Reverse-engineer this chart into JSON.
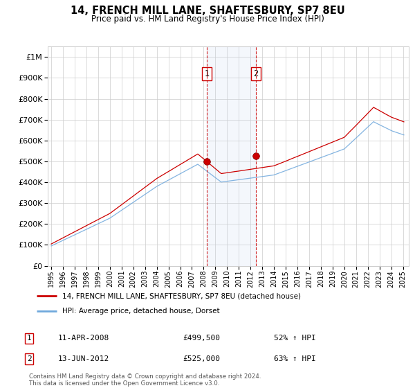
{
  "title": "14, FRENCH MILL LANE, SHAFTESBURY, SP7 8EU",
  "subtitle": "Price paid vs. HM Land Registry's House Price Index (HPI)",
  "legend_line1": "14, FRENCH MILL LANE, SHAFTESBURY, SP7 8EU (detached house)",
  "legend_line2": "HPI: Average price, detached house, Dorset",
  "transaction1_date": "11-APR-2008",
  "transaction1_price": "£499,500",
  "transaction1_hpi": "52% ↑ HPI",
  "transaction2_date": "13-JUN-2012",
  "transaction2_price": "£525,000",
  "transaction2_hpi": "63% ↑ HPI",
  "footer": "Contains HM Land Registry data © Crown copyright and database right 2024.\nThis data is licensed under the Open Government Licence v3.0.",
  "hpi_color": "#6fa8dc",
  "price_color": "#cc0000",
  "dashed_color": "#cc0000",
  "ylim_min": 0,
  "ylim_max": 1050000,
  "transaction1_x": 2008.28,
  "transaction2_x": 2012.45,
  "price_2008": 499500,
  "price_2012": 525000
}
